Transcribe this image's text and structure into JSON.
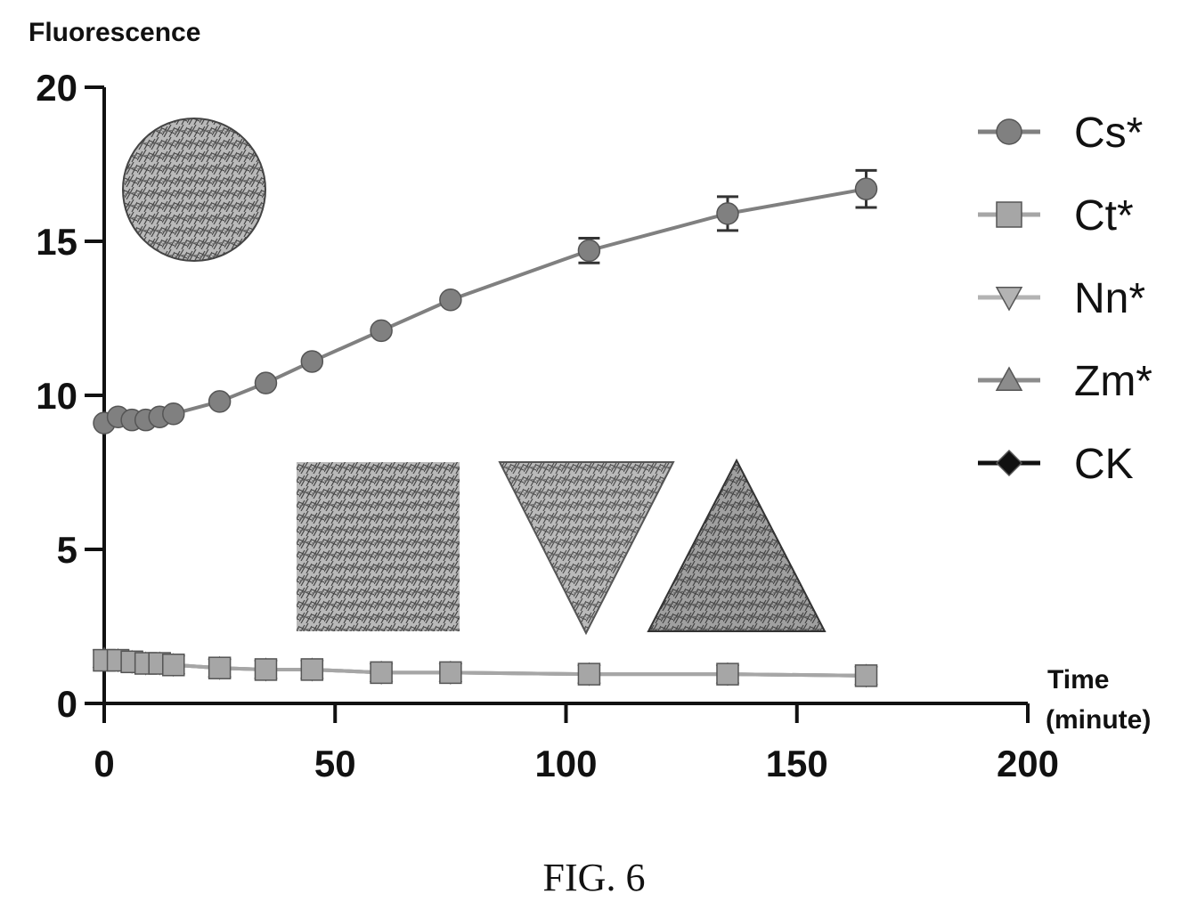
{
  "figure_caption": "FIG. 6",
  "chart_data": {
    "type": "line",
    "ylabel": "Fluorescence",
    "xlabel_lines": [
      "Time",
      "(minute)"
    ],
    "xlim": [
      0,
      200
    ],
    "ylim": [
      0,
      20
    ],
    "x_ticks": [
      0,
      50,
      100,
      150,
      200
    ],
    "y_ticks": [
      0,
      5,
      10,
      15,
      20
    ],
    "grid": false,
    "legend_position": "right",
    "series": [
      {
        "name": "Cs*",
        "marker": "circle",
        "color": "#808080",
        "x": [
          0,
          3,
          6,
          9,
          12,
          15,
          25,
          35,
          45,
          60,
          75,
          105,
          135,
          165
        ],
        "y": [
          9.1,
          9.3,
          9.2,
          9.2,
          9.3,
          9.4,
          9.8,
          10.4,
          11.1,
          12.1,
          13.1,
          14.7,
          15.9,
          16.7
        ],
        "error": [
          0,
          0,
          0,
          0,
          0,
          0,
          0,
          0,
          0,
          0,
          0,
          0.4,
          0.55,
          0.6
        ]
      },
      {
        "name": "Ct*",
        "marker": "square",
        "color": "#a6a6a6",
        "x": [
          0,
          3,
          6,
          9,
          12,
          15,
          25,
          35,
          45,
          60,
          75,
          105,
          135,
          165
        ],
        "y": [
          1.4,
          1.4,
          1.35,
          1.3,
          1.3,
          1.25,
          1.15,
          1.1,
          1.1,
          1.0,
          1.0,
          0.95,
          0.95,
          0.9
        ],
        "error": [
          0,
          0,
          0,
          0,
          0,
          0,
          0,
          0,
          0,
          0,
          0,
          0,
          0,
          0
        ]
      },
      {
        "name": "Nn*",
        "marker": "triangle-down",
        "color": "#b3b3b3",
        "x": [
          0,
          3,
          6,
          9,
          12,
          15,
          25,
          35,
          45,
          60,
          75,
          105,
          135,
          165
        ],
        "y": [
          1.45,
          1.4,
          1.35,
          1.3,
          1.3,
          1.25,
          1.15,
          1.1,
          1.1,
          1.0,
          1.0,
          0.95,
          0.95,
          0.9
        ],
        "error": [
          0,
          0,
          0,
          0,
          0,
          0,
          0,
          0,
          0,
          0,
          0,
          0,
          0,
          0
        ]
      },
      {
        "name": "Zm*",
        "marker": "triangle-up",
        "color": "#8c8c8c",
        "x": [
          0,
          3,
          6,
          9,
          12,
          15,
          25,
          35,
          45,
          60,
          75,
          105,
          135,
          165
        ],
        "y": [
          1.45,
          1.4,
          1.35,
          1.3,
          1.3,
          1.25,
          1.15,
          1.1,
          1.1,
          1.0,
          1.0,
          0.95,
          0.95,
          0.9
        ],
        "error": [
          0,
          0,
          0,
          0,
          0,
          0,
          0,
          0,
          0,
          0,
          0,
          0,
          0,
          0
        ]
      },
      {
        "name": "CK",
        "marker": "diamond",
        "color": "#111111",
        "x": [],
        "y": [],
        "error": []
      }
    ],
    "insets": [
      {
        "name": "photo-circle",
        "shape": "circle",
        "tone": "#7a7a7a"
      },
      {
        "name": "photo-square",
        "shape": "square",
        "tone": "#777777"
      },
      {
        "name": "photo-triangle-down",
        "shape": "triangle-down",
        "tone": "#8a8a8a"
      },
      {
        "name": "photo-triangle-up",
        "shape": "triangle-up",
        "tone": "#5a5a5a"
      }
    ]
  }
}
